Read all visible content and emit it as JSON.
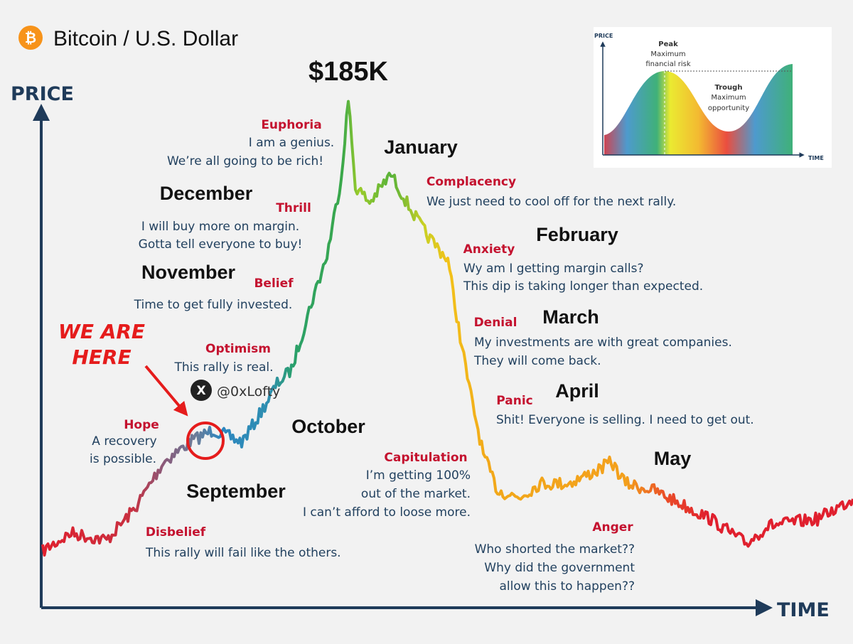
{
  "header": {
    "icon": "₿",
    "title": "Bitcoin / U.S. Dollar"
  },
  "axes": {
    "y": "PRICE",
    "x": "TIME"
  },
  "peak_label": "$185K",
  "callout": [
    "WE ARE",
    "HERE"
  ],
  "watermark": {
    "icon": "X",
    "handle": "@0xLofty"
  },
  "months": [
    "September",
    "October",
    "November",
    "December",
    "January",
    "February",
    "March",
    "April",
    "May"
  ],
  "stages": [
    {
      "name": "Disbelief",
      "lines": [
        "This rally will fail like the others."
      ]
    },
    {
      "name": "Hope",
      "lines": [
        "A recovery",
        "is possible."
      ]
    },
    {
      "name": "Optimism",
      "lines": [
        "This rally is real."
      ]
    },
    {
      "name": "Belief",
      "lines": [
        "Time to get fully invested."
      ]
    },
    {
      "name": "Thrill",
      "lines": [
        "I will buy more on margin.",
        "Gotta tell everyone to buy!"
      ]
    },
    {
      "name": "Euphoria",
      "lines": [
        "I am a genius.",
        "We’re all going to be rich!"
      ]
    },
    {
      "name": "Complacency",
      "lines": [
        "We just need to cool off for the next rally."
      ]
    },
    {
      "name": "Anxiety",
      "lines": [
        "Wy am I getting margin calls?",
        "This dip is taking longer than expected."
      ]
    },
    {
      "name": "Denial",
      "lines": [
        "My investments are with great companies.",
        "They will come back."
      ]
    },
    {
      "name": "Panic",
      "lines": [
        "Shit! Everyone is selling. I need to get out."
      ]
    },
    {
      "name": "Capitulation",
      "lines": [
        "I’m getting 100%",
        "out of the market.",
        "I can’t afford to loose more."
      ]
    },
    {
      "name": "Anger",
      "lines": [
        "Who shorted the market??",
        "Why did the government",
        "allow this to happen??"
      ]
    }
  ],
  "inset": {
    "y": "PRICE",
    "x": "TIME",
    "peak": {
      "title": "Peak",
      "lines": [
        "Maximum",
        "financial risk"
      ]
    },
    "trough": {
      "title": "Trough",
      "lines": [
        "Maximum",
        "opportunity"
      ]
    }
  }
}
